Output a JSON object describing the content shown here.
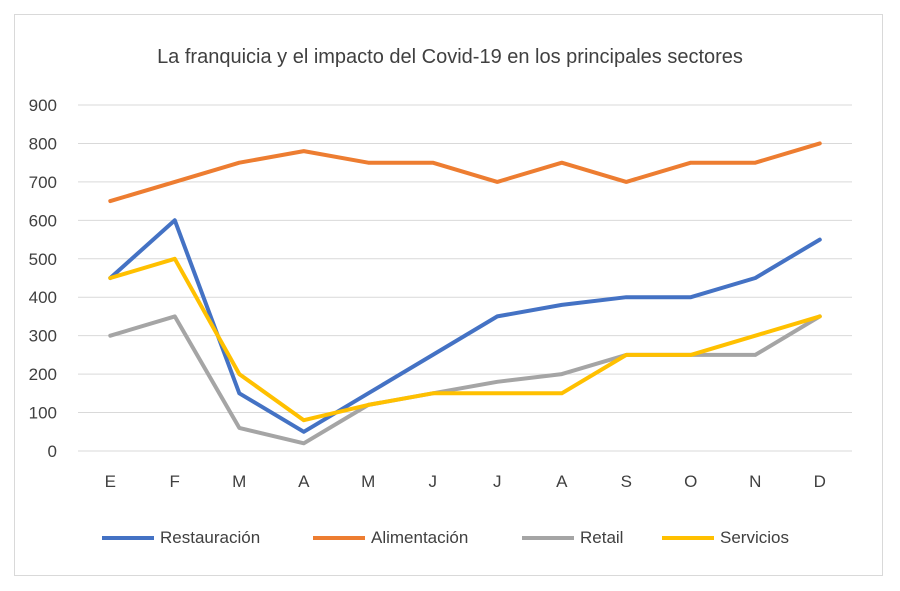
{
  "chart_data": {
    "type": "line",
    "title": "La franquicia y el impacto del Covid-19 en los principales sectores",
    "categories": [
      "E",
      "F",
      "M",
      "A",
      "M",
      "J",
      "J",
      "A",
      "S",
      "O",
      "N",
      "D"
    ],
    "ylim": [
      0,
      900
    ],
    "yticks": [
      "0",
      "100",
      "200",
      "300",
      "400",
      "500",
      "600",
      "700",
      "800",
      "900"
    ],
    "grid": true,
    "legend_position": "bottom",
    "series": [
      {
        "name": "Restauración",
        "color": "#4472C4",
        "values": [
          450,
          600,
          150,
          50,
          150,
          250,
          350,
          380,
          400,
          400,
          450,
          550
        ]
      },
      {
        "name": "Alimentación",
        "color": "#ED7D31",
        "values": [
          650,
          700,
          750,
          780,
          750,
          750,
          700,
          750,
          700,
          750,
          750,
          800
        ]
      },
      {
        "name": "Retail",
        "color": "#A5A5A5",
        "values": [
          300,
          350,
          60,
          20,
          120,
          150,
          180,
          200,
          250,
          250,
          250,
          350
        ]
      },
      {
        "name": "Servicios",
        "color": "#FFC000",
        "values": [
          450,
          500,
          200,
          80,
          120,
          150,
          150,
          150,
          250,
          250,
          300,
          350
        ]
      }
    ]
  }
}
